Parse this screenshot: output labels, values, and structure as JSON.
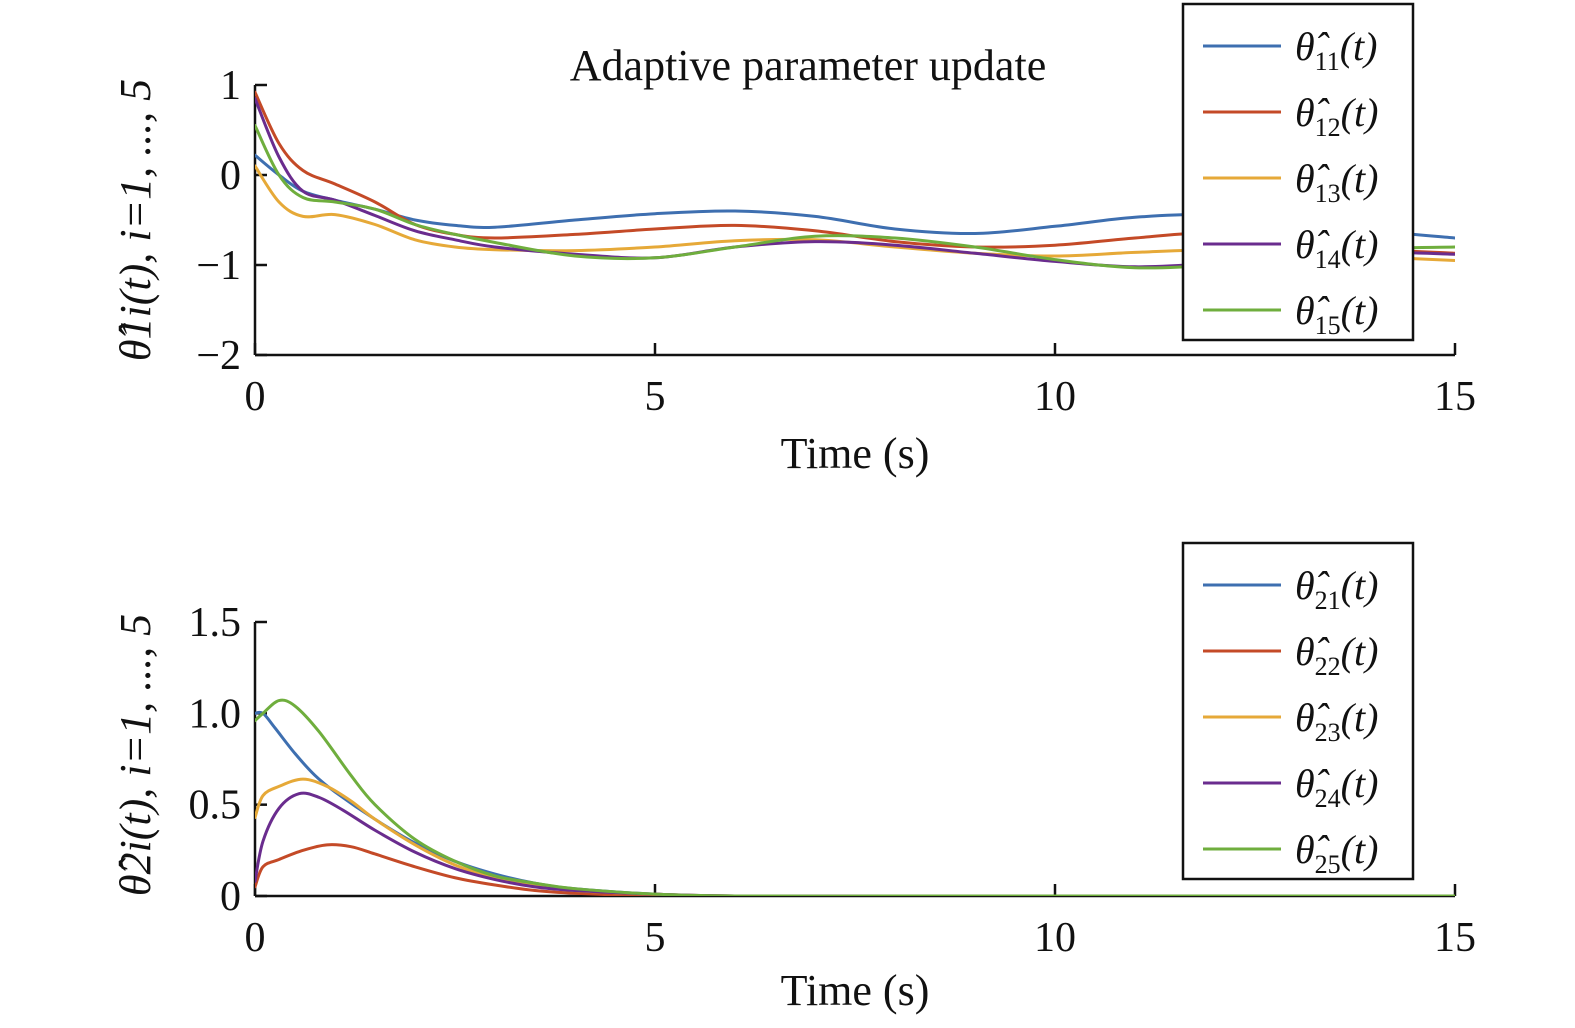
{
  "chart_data": [
    {
      "type": "line",
      "title": "Adaptive parameter update",
      "xlabel": "Time (s)",
      "ylabel": "θ̂1i(t), i=1, ..., 5",
      "xlim": [
        0,
        15
      ],
      "ylim": [
        -2,
        1
      ],
      "xticks": [
        "0",
        "5",
        "10",
        "15"
      ],
      "yticks": [
        "1",
        "0",
        "−1",
        "−2"
      ],
      "legend_position": "top-right",
      "series": [
        {
          "name": "θ̂11(t)",
          "color": "#3E6FB0",
          "x": [
            0,
            0.3,
            0.6,
            1,
            1.5,
            2,
            2.5,
            3,
            4,
            5,
            6,
            7,
            8,
            9,
            10,
            11,
            12,
            13,
            14,
            15
          ],
          "y": [
            0.22,
            0.0,
            -0.18,
            -0.28,
            -0.38,
            -0.5,
            -0.56,
            -0.58,
            -0.5,
            -0.43,
            -0.4,
            -0.46,
            -0.6,
            -0.65,
            -0.57,
            -0.47,
            -0.44,
            -0.52,
            -0.62,
            -0.7
          ]
        },
        {
          "name": "θ̂12(t)",
          "color": "#C44A27",
          "x": [
            0,
            0.3,
            0.6,
            1,
            1.5,
            2,
            2.5,
            3,
            4,
            5,
            6,
            7,
            8,
            9,
            10,
            11,
            12,
            13,
            14,
            15
          ],
          "y": [
            0.92,
            0.35,
            0.05,
            -0.1,
            -0.3,
            -0.55,
            -0.66,
            -0.7,
            -0.66,
            -0.6,
            -0.56,
            -0.62,
            -0.74,
            -0.8,
            -0.78,
            -0.7,
            -0.64,
            -0.72,
            -0.82,
            -0.87
          ]
        },
        {
          "name": "θ̂13(t)",
          "color": "#E6A938",
          "x": [
            0,
            0.3,
            0.6,
            1,
            1.5,
            2,
            2.5,
            3,
            4,
            5,
            6,
            7,
            8,
            9,
            10,
            11,
            12,
            13,
            14,
            15
          ],
          "y": [
            0.1,
            -0.3,
            -0.46,
            -0.44,
            -0.55,
            -0.72,
            -0.8,
            -0.83,
            -0.84,
            -0.8,
            -0.73,
            -0.72,
            -0.8,
            -0.87,
            -0.9,
            -0.86,
            -0.83,
            -0.86,
            -0.91,
            -0.95
          ]
        },
        {
          "name": "θ̂14(t)",
          "color": "#6A2C8E",
          "x": [
            0,
            0.3,
            0.6,
            1,
            1.5,
            2,
            2.5,
            3,
            4,
            5,
            6,
            7,
            8,
            9,
            10,
            11,
            12,
            13,
            14,
            15
          ],
          "y": [
            0.85,
            0.2,
            -0.18,
            -0.28,
            -0.45,
            -0.62,
            -0.72,
            -0.8,
            -0.88,
            -0.92,
            -0.8,
            -0.74,
            -0.78,
            -0.87,
            -0.96,
            -1.02,
            -0.98,
            -0.9,
            -0.86,
            -0.88
          ]
        },
        {
          "name": "θ̂15(t)",
          "color": "#6FAE3D",
          "x": [
            0,
            0.3,
            0.6,
            1,
            1.5,
            2,
            2.5,
            3,
            4,
            5,
            6,
            7,
            8,
            9,
            10,
            11,
            12,
            13,
            14,
            15
          ],
          "y": [
            0.55,
            0.0,
            -0.25,
            -0.3,
            -0.38,
            -0.55,
            -0.66,
            -0.75,
            -0.9,
            -0.92,
            -0.8,
            -0.68,
            -0.7,
            -0.8,
            -0.94,
            -1.03,
            -1.0,
            -0.9,
            -0.82,
            -0.8
          ]
        }
      ]
    },
    {
      "type": "line",
      "title": "",
      "xlabel": "Time (s)",
      "ylabel": "θ̂2i(t), i=1, ..., 5",
      "xlim": [
        0,
        15
      ],
      "ylim": [
        0,
        1.5
      ],
      "xticks": [
        "0",
        "5",
        "10",
        "15"
      ],
      "yticks": [
        "1.5",
        "1.0",
        "0.5",
        "0"
      ],
      "legend_position": "top-right",
      "series": [
        {
          "name": "θ̂21(t)",
          "color": "#3E6FB0",
          "x": [
            0,
            0.1,
            0.25,
            0.5,
            0.75,
            1,
            1.5,
            2,
            2.5,
            3,
            3.5,
            4,
            5,
            6,
            8,
            10,
            15
          ],
          "y": [
            1.0,
            1.0,
            0.92,
            0.78,
            0.66,
            0.57,
            0.42,
            0.29,
            0.19,
            0.12,
            0.07,
            0.04,
            0.01,
            0.0,
            0.0,
            0.0,
            0.0
          ]
        },
        {
          "name": "θ̂22(t)",
          "color": "#C44A27",
          "x": [
            0,
            0.1,
            0.3,
            0.6,
            0.9,
            1.2,
            1.5,
            2,
            2.5,
            3,
            3.5,
            4,
            5,
            6,
            8,
            10,
            15
          ],
          "y": [
            0.05,
            0.16,
            0.2,
            0.25,
            0.28,
            0.27,
            0.23,
            0.16,
            0.1,
            0.06,
            0.03,
            0.015,
            0.0,
            0.0,
            0.0,
            0.0,
            0.0
          ]
        },
        {
          "name": "θ̂23(t)",
          "color": "#E6A938",
          "x": [
            0,
            0.1,
            0.3,
            0.6,
            0.9,
            1.2,
            1.5,
            2,
            2.5,
            3,
            3.5,
            4,
            5,
            6,
            8,
            10,
            15
          ],
          "y": [
            0.43,
            0.55,
            0.6,
            0.64,
            0.6,
            0.52,
            0.42,
            0.28,
            0.17,
            0.1,
            0.06,
            0.03,
            0.01,
            0.0,
            0.0,
            0.0,
            0.0
          ]
        },
        {
          "name": "θ̂24(t)",
          "color": "#6A2C8E",
          "x": [
            0,
            0.1,
            0.3,
            0.55,
            0.8,
            1.1,
            1.5,
            2,
            2.5,
            3,
            3.5,
            4,
            5,
            6,
            8,
            10,
            15
          ],
          "y": [
            0.08,
            0.3,
            0.48,
            0.56,
            0.54,
            0.47,
            0.36,
            0.24,
            0.15,
            0.09,
            0.05,
            0.03,
            0.01,
            0.0,
            0.0,
            0.0,
            0.0
          ]
        },
        {
          "name": "θ̂25(t)",
          "color": "#6FAE3D",
          "x": [
            0,
            0.1,
            0.3,
            0.5,
            0.8,
            1.2,
            1.5,
            2,
            2.5,
            3,
            3.5,
            4,
            5,
            6,
            8,
            10,
            15
          ],
          "y": [
            0.96,
            1.0,
            1.07,
            1.04,
            0.9,
            0.66,
            0.5,
            0.31,
            0.19,
            0.11,
            0.07,
            0.04,
            0.01,
            0.0,
            0.0,
            0.0,
            0.0
          ]
        }
      ]
    }
  ]
}
